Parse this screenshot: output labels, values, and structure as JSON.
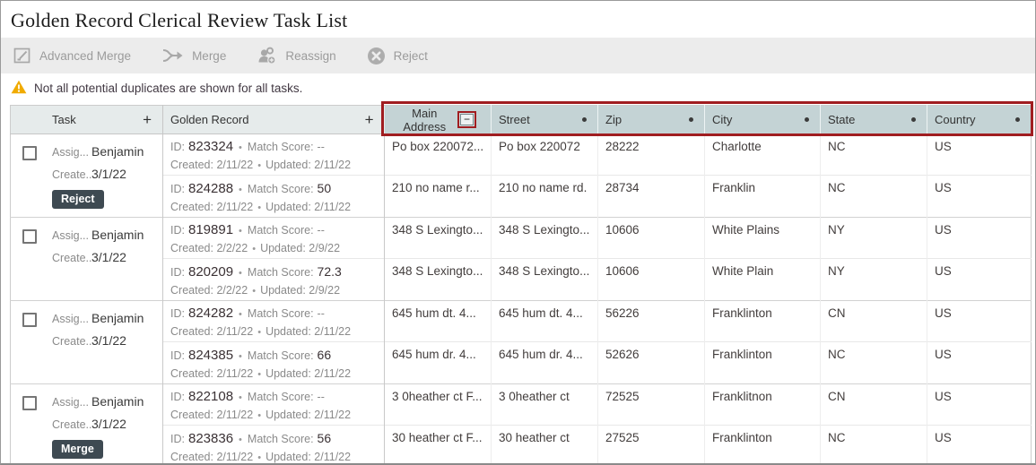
{
  "page": {
    "title": "Golden Record Clerical Review Task List"
  },
  "toolbar": {
    "buttons": [
      {
        "label": "Advanced Merge",
        "icon": "advanced-merge-icon"
      },
      {
        "label": "Merge",
        "icon": "merge-icon"
      },
      {
        "label": "Reassign",
        "icon": "reassign-icon"
      },
      {
        "label": "Reject",
        "icon": "reject-icon"
      }
    ]
  },
  "warning": {
    "text": "Not all potential duplicates are shown for all tasks."
  },
  "colors": {
    "highlight_red": "#a01d20",
    "address_header_bg": "#c4d3d5",
    "header_bg": "#e6ebeb",
    "badge_bg": "#3e4a52",
    "warning_yellow": "#f0ab00"
  },
  "table": {
    "header": {
      "task": {
        "label": "Task",
        "add_control": "+"
      },
      "golden_record": {
        "label": "Golden Record",
        "add_control": "+"
      },
      "address_columns": [
        {
          "label": "Main Address",
          "control": "collapse-minus"
        },
        {
          "label": "Street"
        },
        {
          "label": "Zip"
        },
        {
          "label": "City"
        },
        {
          "label": "State"
        },
        {
          "label": "Country"
        }
      ]
    },
    "task_labels": {
      "assigned": "Assig...",
      "created": "Create..."
    },
    "record_labels": {
      "id": "ID:",
      "match_score": "Match Score:",
      "created": "Created:",
      "updated": "Updated:",
      "bullet": "•"
    },
    "tasks": [
      {
        "assigned_to": "Benjamin",
        "created": "3/1/22",
        "badge": "Reject",
        "records": [
          {
            "id": "823324",
            "match_score": "--",
            "created": "2/11/22",
            "updated": "2/11/22",
            "main_address": "Po box 220072...",
            "street": "Po box 220072",
            "zip": "28222",
            "city": "Charlotte",
            "state": "NC",
            "country": "US"
          },
          {
            "id": "824288",
            "match_score": "50",
            "created": "2/11/22",
            "updated": "2/11/22",
            "main_address": "210 no name r...",
            "street": "210 no name rd.",
            "zip": "28734",
            "city": "Franklin",
            "state": "NC",
            "country": "US"
          }
        ]
      },
      {
        "assigned_to": "Benjamin",
        "created": "3/1/22",
        "badge": null,
        "records": [
          {
            "id": "819891",
            "match_score": "--",
            "created": "2/2/22",
            "updated": "2/9/22",
            "main_address": "348 S Lexingto...",
            "street": "348 S Lexingto...",
            "zip": "10606",
            "city": "White Plains",
            "state": "NY",
            "country": "US"
          },
          {
            "id": "820209",
            "match_score": "72.3",
            "created": "2/2/22",
            "updated": "2/9/22",
            "main_address": "348 S Lexingto...",
            "street": "348 S Lexingto...",
            "zip": "10606",
            "city": "White Plain",
            "state": "NY",
            "country": "US"
          }
        ]
      },
      {
        "assigned_to": "Benjamin",
        "created": "3/1/22",
        "badge": null,
        "records": [
          {
            "id": "824282",
            "match_score": "--",
            "created": "2/11/22",
            "updated": "2/11/22",
            "main_address": "645 hum dt. 4...",
            "street": "645 hum dt. 4...",
            "zip": "56226",
            "city": "Franklinton",
            "state": "CN",
            "country": "US"
          },
          {
            "id": "824385",
            "match_score": "66",
            "created": "2/11/22",
            "updated": "2/11/22",
            "main_address": "645 hum dr. 4...",
            "street": "645 hum dr. 4...",
            "zip": "52626",
            "city": "Franklinton",
            "state": "NC",
            "country": "US"
          }
        ]
      },
      {
        "assigned_to": "Benjamin",
        "created": "3/1/22",
        "badge": "Merge",
        "records": [
          {
            "id": "822108",
            "match_score": "--",
            "created": "2/11/22",
            "updated": "2/11/22",
            "main_address": "3 0heather ct F...",
            "street": "3 0heather ct",
            "zip": "72525",
            "city": "Franklitnon",
            "state": "CN",
            "country": "US"
          },
          {
            "id": "823836",
            "match_score": "56",
            "created": "2/11/22",
            "updated": "2/11/22",
            "main_address": "30 heather ct F...",
            "street": "30 heather ct",
            "zip": "27525",
            "city": "Franklinton",
            "state": "NC",
            "country": "US"
          }
        ]
      }
    ]
  }
}
